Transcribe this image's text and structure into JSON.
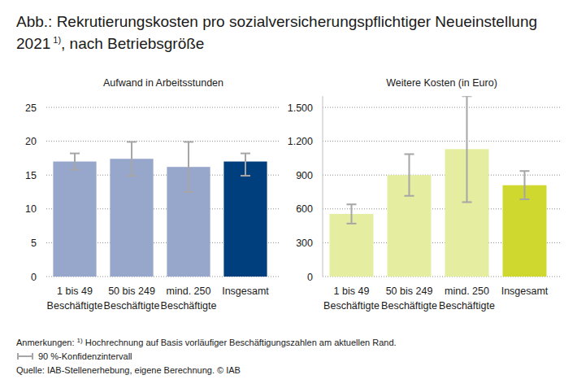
{
  "figure_title": {
    "line1": "Abb.: Rekrutierungskosten pro sozialversicherungspflichtiger Neueinstellung",
    "line2": "2021",
    "footnote_mark": "1)",
    "line2_rest": ", nach Betriebsgröße"
  },
  "chart_data": [
    {
      "type": "bar",
      "title": "Aufwand in Arbeitsstunden",
      "categories": [
        "1 bis 49\nBeschäftigte",
        "50 bis 249\nBeschäftigte",
        "mind. 250\nBeschäftigte",
        "Insgesamt"
      ],
      "values": [
        17.0,
        17.4,
        16.2,
        17.0
      ],
      "ci_low": [
        15.8,
        14.9,
        12.5,
        14.9
      ],
      "ci_high": [
        18.2,
        19.9,
        19.9,
        18.2
      ],
      "colors": [
        "#97a6cb",
        "#97a6cb",
        "#97a6cb",
        "#003f7d"
      ],
      "ylim": [
        0,
        25
      ],
      "yticks": [
        0,
        5,
        10,
        15,
        20,
        25
      ],
      "grid": true
    },
    {
      "type": "bar",
      "title": "Weitere Kosten (in Euro)",
      "categories": [
        "1 bis 49\nBeschäftigte",
        "50 bis 249\nBeschäftigte",
        "mind. 250\nBeschäftigte",
        "Insgesamt"
      ],
      "values": [
        555,
        900,
        1130,
        810
      ],
      "ci_low": [
        470,
        715,
        660,
        685
      ],
      "ci_high": [
        640,
        1085,
        1600,
        935
      ],
      "colors": [
        "#e5eda0",
        "#e5eda0",
        "#e5eda0",
        "#cfd82e"
      ],
      "ylim": [
        0,
        1600
      ],
      "yticks": [
        0,
        300,
        600,
        900,
        {
          "value": 1200,
          "label": "1.200"
        },
        {
          "value": 1500,
          "label": "1.500"
        }
      ],
      "grid": true
    }
  ],
  "notes": {
    "prefix": "Anmerkungen: ",
    "footnote_mark": "1)",
    "text": " Hochrechnung auf Basis vorläufiger Beschäftigungszahlen am aktuellen Rand."
  },
  "ci_legend": "90 %-Konfidenzintervall",
  "source": "Quelle: IAB-Stellenerhebung, eigene Berechnung. © IAB"
}
